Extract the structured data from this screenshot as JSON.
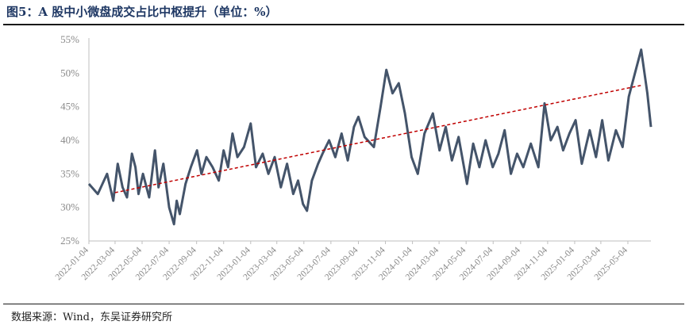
{
  "title": "图5：A 股中小微盘成交占比中枢提升（单位：%）",
  "source": "数据来源：Wind，东吴证券研究所",
  "colors": {
    "series": "#44546a",
    "trend": "#c00000",
    "title": "#1f3864",
    "axis": "#bfbfbf",
    "tick": "#8a8a8a"
  },
  "chart_data": {
    "type": "line",
    "title": "A 股中小微盘成交占比中枢提升（单位：%）",
    "xlabel": "",
    "ylabel": "",
    "x_start": "2022-01-04",
    "x_end": "2025-06-25",
    "ylim": [
      25,
      55
    ],
    "yticks": [
      25,
      30,
      35,
      40,
      45,
      50,
      55
    ],
    "ytick_labels": [
      "25%",
      "30%",
      "35%",
      "40%",
      "45%",
      "50%",
      "55%"
    ],
    "xtick_labels": [
      "2022-01-04",
      "2022-03-04",
      "2022-05-04",
      "2022-07-04",
      "2022-09-04",
      "2022-11-04",
      "2023-01-04",
      "2023-03-04",
      "2023-05-04",
      "2023-07-04",
      "2023-09-04",
      "2023-11-04",
      "2024-01-04",
      "2024-03-04",
      "2024-05-04",
      "2024-07-04",
      "2024-09-04",
      "2024-11-04",
      "2025-01-04",
      "2025-03-04",
      "2025-05-04"
    ],
    "grid": false,
    "legend": "none",
    "series": [
      {
        "style": "solid",
        "x": [
          "2022-01-04",
          "2022-01-24",
          "2022-02-14",
          "2022-02-28",
          "2022-03-10",
          "2022-03-21",
          "2022-03-31",
          "2022-04-11",
          "2022-04-19",
          "2022-04-26",
          "2022-05-06",
          "2022-05-20",
          "2022-06-02",
          "2022-06-10",
          "2022-06-21",
          "2022-07-04",
          "2022-07-15",
          "2022-07-21",
          "2022-07-28",
          "2022-08-10",
          "2022-08-22",
          "2022-09-05",
          "2022-09-15",
          "2022-09-26",
          "2022-10-10",
          "2022-10-24",
          "2022-11-04",
          "2022-11-14",
          "2022-11-24",
          "2022-12-05",
          "2022-12-20",
          "2023-01-04",
          "2023-01-16",
          "2023-01-31",
          "2023-02-13",
          "2023-02-27",
          "2023-03-13",
          "2023-03-27",
          "2023-04-10",
          "2023-04-21",
          "2023-05-02",
          "2023-05-11",
          "2023-05-22",
          "2023-06-05",
          "2023-06-15",
          "2023-06-30",
          "2023-07-14",
          "2023-07-28",
          "2023-08-11",
          "2023-08-25",
          "2023-09-04",
          "2023-09-18",
          "2023-10-09",
          "2023-10-24",
          "2023-11-06",
          "2023-11-20",
          "2023-12-04",
          "2023-12-18",
          "2024-01-02",
          "2024-01-16",
          "2024-01-31",
          "2024-02-19",
          "2024-03-05",
          "2024-03-19",
          "2024-04-02",
          "2024-04-17",
          "2024-05-06",
          "2024-05-20",
          "2024-06-03",
          "2024-06-17",
          "2024-07-03",
          "2024-07-16",
          "2024-07-30",
          "2024-08-13",
          "2024-08-27",
          "2024-09-10",
          "2024-09-27",
          "2024-10-14",
          "2024-10-28",
          "2024-11-11",
          "2024-11-26",
          "2024-12-09",
          "2024-12-23",
          "2025-01-06",
          "2025-01-20",
          "2025-02-07",
          "2025-02-21",
          "2025-03-07",
          "2025-03-21",
          "2025-04-07",
          "2025-04-22",
          "2025-05-06",
          "2025-05-20",
          "2025-06-03",
          "2025-06-17",
          "2025-06-25"
        ],
        "values": [
          33.5,
          32.0,
          35.0,
          31.0,
          36.5,
          33.0,
          31.5,
          38.0,
          36.0,
          32.0,
          35.0,
          31.5,
          38.5,
          33.0,
          36.5,
          30.0,
          27.5,
          31.0,
          29.0,
          33.5,
          36.0,
          38.5,
          35.0,
          37.5,
          36.0,
          34.0,
          38.5,
          36.0,
          41.0,
          37.5,
          39.0,
          42.5,
          36.0,
          38.0,
          35.0,
          37.5,
          33.0,
          36.5,
          32.0,
          34.0,
          30.5,
          29.5,
          34.0,
          36.5,
          38.0,
          40.0,
          37.5,
          41.0,
          37.0,
          42.0,
          43.5,
          40.5,
          39.0,
          45.0,
          50.5,
          47.0,
          48.5,
          44.0,
          37.5,
          35.0,
          41.0,
          44.0,
          38.5,
          42.0,
          37.0,
          40.5,
          33.5,
          39.5,
          36.0,
          40.0,
          36.0,
          38.0,
          41.5,
          35.0,
          38.0,
          36.0,
          39.5,
          36.0,
          45.5,
          40.0,
          42.0,
          38.5,
          41.0,
          43.0,
          36.5,
          41.5,
          37.5,
          43.0,
          37.0,
          41.5,
          39.0,
          46.5,
          50.0,
          53.5,
          47.0,
          42.0
        ]
      },
      {
        "style": "dashed",
        "x": [
          "2022-03-04",
          "2025-06-04"
        ],
        "values": [
          32.2,
          48.2
        ]
      }
    ]
  }
}
